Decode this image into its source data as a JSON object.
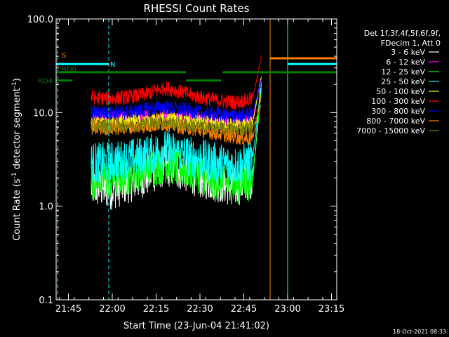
{
  "chart_data": {
    "type": "line",
    "title": "RHESSI Count Rates",
    "xlabel": "Start Time (23-Jun-04 21:41:02)",
    "ylabel_prefix": "Count Rate (s",
    "ylabel_sup1": "-1",
    "ylabel_mid": " detector segment",
    "ylabel_sup2": "-1",
    "ylabel_suffix": ")",
    "y_scale": "log",
    "ylim": [
      0.1,
      100
    ],
    "xlim_minutes": [
      21.68,
      23.28
    ],
    "x_ticks": [
      {
        "label": "21:45",
        "t": 21.75
      },
      {
        "label": "22:00",
        "t": 22.0
      },
      {
        "label": "22:15",
        "t": 22.25
      },
      {
        "label": "22:30",
        "t": 22.5
      },
      {
        "label": "22:45",
        "t": 22.75
      },
      {
        "label": "23:00",
        "t": 23.0
      },
      {
        "label": "23:15",
        "t": 23.25
      }
    ],
    "y_ticks": [
      {
        "label": "0.1",
        "v": 0.1
      },
      {
        "label": "1.0",
        "v": 1.0
      },
      {
        "label": "10.0",
        "v": 10.0
      },
      {
        "label": "100.0",
        "v": 100.0
      }
    ],
    "legend_header": [
      "Det 1f,3f,4f,5f,6f,9f,",
      "FDecim 1, Att 0"
    ],
    "series": [
      {
        "name": "3 - 6 keV",
        "color": "#ffffff",
        "x": [
          21.88,
          22.0,
          22.1,
          22.2,
          22.3,
          22.4,
          22.5,
          22.6,
          22.7,
          22.8,
          22.85
        ],
        "y": [
          1.6,
          1.5,
          1.8,
          2.1,
          2.7,
          2.4,
          2.0,
          1.8,
          1.6,
          2.0,
          20
        ]
      },
      {
        "name": "6 - 12 keV",
        "color": "#ff00ff",
        "x": [
          21.88,
          22.0,
          22.1,
          22.2,
          22.3,
          22.4,
          22.5,
          22.6,
          22.7,
          22.8,
          22.85
        ],
        "y": [
          8.5,
          8.6,
          8.8,
          9.0,
          9.3,
          9.0,
          8.6,
          8.3,
          8.0,
          8.3,
          25
        ]
      },
      {
        "name": "12 - 25 keV",
        "color": "#00ff00",
        "x": [
          21.88,
          22.0,
          22.1,
          22.2,
          22.3,
          22.4,
          22.5,
          22.6,
          22.7,
          22.8,
          22.85
        ],
        "y": [
          1.9,
          2.0,
          2.2,
          2.5,
          2.9,
          2.6,
          2.2,
          1.9,
          1.7,
          1.9,
          18
        ]
      },
      {
        "name": "25 - 50 keV",
        "color": "#00ffff",
        "x": [
          21.88,
          22.0,
          22.1,
          22.2,
          22.3,
          22.4,
          22.5,
          22.6,
          22.7,
          22.8,
          22.85
        ],
        "y": [
          2.9,
          3.0,
          3.2,
          3.5,
          4.0,
          3.6,
          3.2,
          2.9,
          2.7,
          3.0,
          22
        ]
      },
      {
        "name": "50 - 100 keV",
        "color": "#ffff00",
        "x": [
          21.88,
          22.0,
          22.1,
          22.2,
          22.3,
          22.4,
          22.5,
          22.6,
          22.7,
          22.8,
          22.85
        ],
        "y": [
          7.7,
          7.8,
          8.0,
          8.2,
          8.5,
          8.2,
          7.9,
          7.6,
          7.4,
          7.6,
          24
        ]
      },
      {
        "name": "100 - 300 keV",
        "color": "#ff0000",
        "x": [
          21.88,
          22.0,
          22.1,
          22.2,
          22.3,
          22.4,
          22.5,
          22.6,
          22.7,
          22.8,
          22.85
        ],
        "y": [
          14.5,
          14.0,
          14.8,
          15.8,
          18.5,
          16.5,
          14.5,
          13.5,
          12.8,
          14.0,
          40
        ]
      },
      {
        "name": "300 - 800 keV",
        "color": "#0000ff",
        "x": [
          21.88,
          22.0,
          22.1,
          22.2,
          22.3,
          22.4,
          22.5,
          22.6,
          22.7,
          22.8,
          22.85
        ],
        "y": [
          10.2,
          9.8,
          10.2,
          10.8,
          11.5,
          10.8,
          10.0,
          9.6,
          9.2,
          9.8,
          22
        ]
      },
      {
        "name": "800 - 7000 keV",
        "color": "#ff8000",
        "x": [
          21.88,
          22.0,
          22.1,
          22.2,
          22.3,
          22.4,
          22.5,
          22.6,
          22.7,
          22.8,
          22.85
        ],
        "y": [
          6.8,
          6.8,
          7.0,
          7.2,
          7.6,
          7.0,
          6.5,
          6.0,
          5.5,
          5.2,
          15
        ]
      },
      {
        "name": "7000 - 15000 keV",
        "color": "#808000",
        "x": [
          21.88,
          22.0,
          22.1,
          22.2,
          22.3,
          22.4,
          22.5,
          22.6,
          22.7,
          22.8,
          22.85
        ],
        "y": [
          7.2,
          7.2,
          7.4,
          7.6,
          7.9,
          7.5,
          7.1,
          6.8,
          6.6,
          6.8,
          12
        ]
      }
    ],
    "vlines": [
      {
        "t": 21.69,
        "color": "#00ffff",
        "dashed": true
      },
      {
        "t": 21.98,
        "color": "#00ffff",
        "dashed": true
      },
      {
        "t": 23.0,
        "color": "#00ffff",
        "dashed": false
      },
      {
        "t": 22.9,
        "color": "#ff8000",
        "dashed": false
      },
      {
        "t": 23.28,
        "color": "#ff8000",
        "dashed": true
      }
    ],
    "flag_bars": [
      {
        "label": "S",
        "color": "#ff8000",
        "level": 38,
        "segments": [
          [
            22.9,
            23.28
          ]
        ]
      },
      {
        "label": "N",
        "color": "#00ffff",
        "level": 33,
        "segments": [
          [
            21.68,
            21.98
          ],
          [
            23.0,
            23.28
          ]
        ]
      },
      {
        "label": "RD0",
        "color": "#008000",
        "level": 27,
        "segments": [
          [
            21.68,
            22.42
          ],
          [
            22.63,
            23.28
          ]
        ]
      },
      {
        "label": "RD4",
        "color": "#008000",
        "level": 22,
        "segments": [
          [
            21.68,
            21.77
          ],
          [
            22.42,
            22.62
          ]
        ]
      }
    ],
    "footer_date": "18-Oct-2021 08:33"
  }
}
